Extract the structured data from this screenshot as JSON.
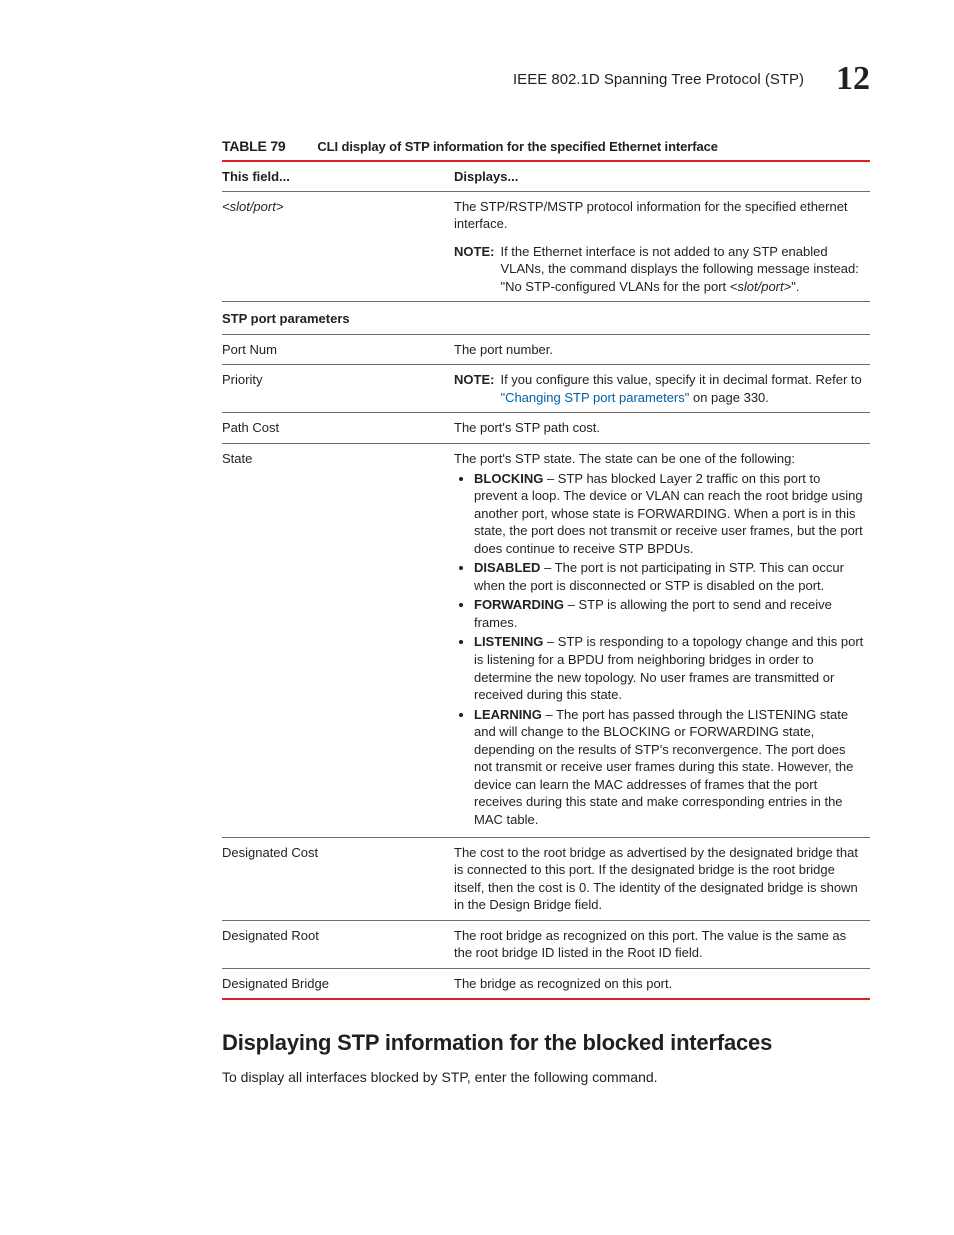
{
  "header": {
    "running_title": "IEEE 802.1D Spanning Tree Protocol (STP)",
    "chapter_number": "12"
  },
  "table": {
    "label": "TABLE 79",
    "title": "CLI display of STP information for the specified Ethernet interface",
    "head": {
      "col1": "This field...",
      "col2": "Displays..."
    },
    "rows": {
      "slotport": {
        "field": "<slot/port>",
        "desc": "The STP/RSTP/MSTP protocol information for the specified ethernet interface.",
        "note_label": "NOTE:",
        "note_body_a": "If the Ethernet interface is not added to any STP enabled VLANs, the command displays the following message instead: \"No STP-configured VLANs for the port ",
        "note_body_b": "<slot/port>",
        "note_body_c": "\"."
      },
      "section": {
        "label": "STP port parameters"
      },
      "portnum": {
        "field": "Port Num",
        "desc": "The port number."
      },
      "priority": {
        "field": "Priority",
        "note_label": "NOTE:",
        "note_body": "If you configure this value, specify it in decimal format. Refer to ",
        "link_text": "\"Changing STP port parameters\"",
        "link_after": " on page 330."
      },
      "pathcost": {
        "field": "Path Cost",
        "desc": "The port's STP path cost."
      },
      "state": {
        "field": "State",
        "intro": "The port's STP state.  The state can be one of the following:",
        "items": [
          {
            "name": "BLOCKING",
            "text": " – STP has blocked Layer 2 traffic on this port to prevent a loop.  The device or VLAN can reach the root bridge using another port, whose state is FORWARDING.  When a port is in this state, the port does not transmit or receive user frames, but the port does continue to receive STP BPDUs."
          },
          {
            "name": "DISABLED",
            "text": " – The port is not participating in STP.  This can occur when the port is disconnected or STP is disabled on the port."
          },
          {
            "name": "FORWARDING",
            "text": " – STP is allowing the port to send and receive frames."
          },
          {
            "name": "LISTENING",
            "text": " – STP is responding to a topology change and this port is listening for a BPDU from neighboring bridges in order to determine the new topology.  No user frames are transmitted or received during this state."
          },
          {
            "name": "LEARNING",
            "text": " – The port has passed through the LISTENING state and will change to the BLOCKING or FORWARDING state, depending on the results of STP's reconvergence.  The port does not transmit or receive user frames during this state.  However, the device can learn the MAC addresses of frames that the port receives during this state and make corresponding entries in the MAC table."
          }
        ]
      },
      "designated_cost": {
        "field": "Designated Cost",
        "desc": "The cost to the root bridge as advertised by the designated bridge that is connected to this port.  If the designated bridge is the root bridge itself, then the cost is 0.  The identity of the designated bridge is shown in the Design Bridge field."
      },
      "designated_root": {
        "field": "Designated Root",
        "desc": "The root bridge as recognized on this port.  The value is the same as the root bridge ID listed in the Root ID field."
      },
      "designated_bridge": {
        "field": "Designated Bridge",
        "desc": "The bridge as recognized on this port."
      }
    }
  },
  "section": {
    "heading": "Displaying STP information for the blocked interfaces",
    "para": "To display all interfaces blocked by STP, enter the following command."
  }
}
